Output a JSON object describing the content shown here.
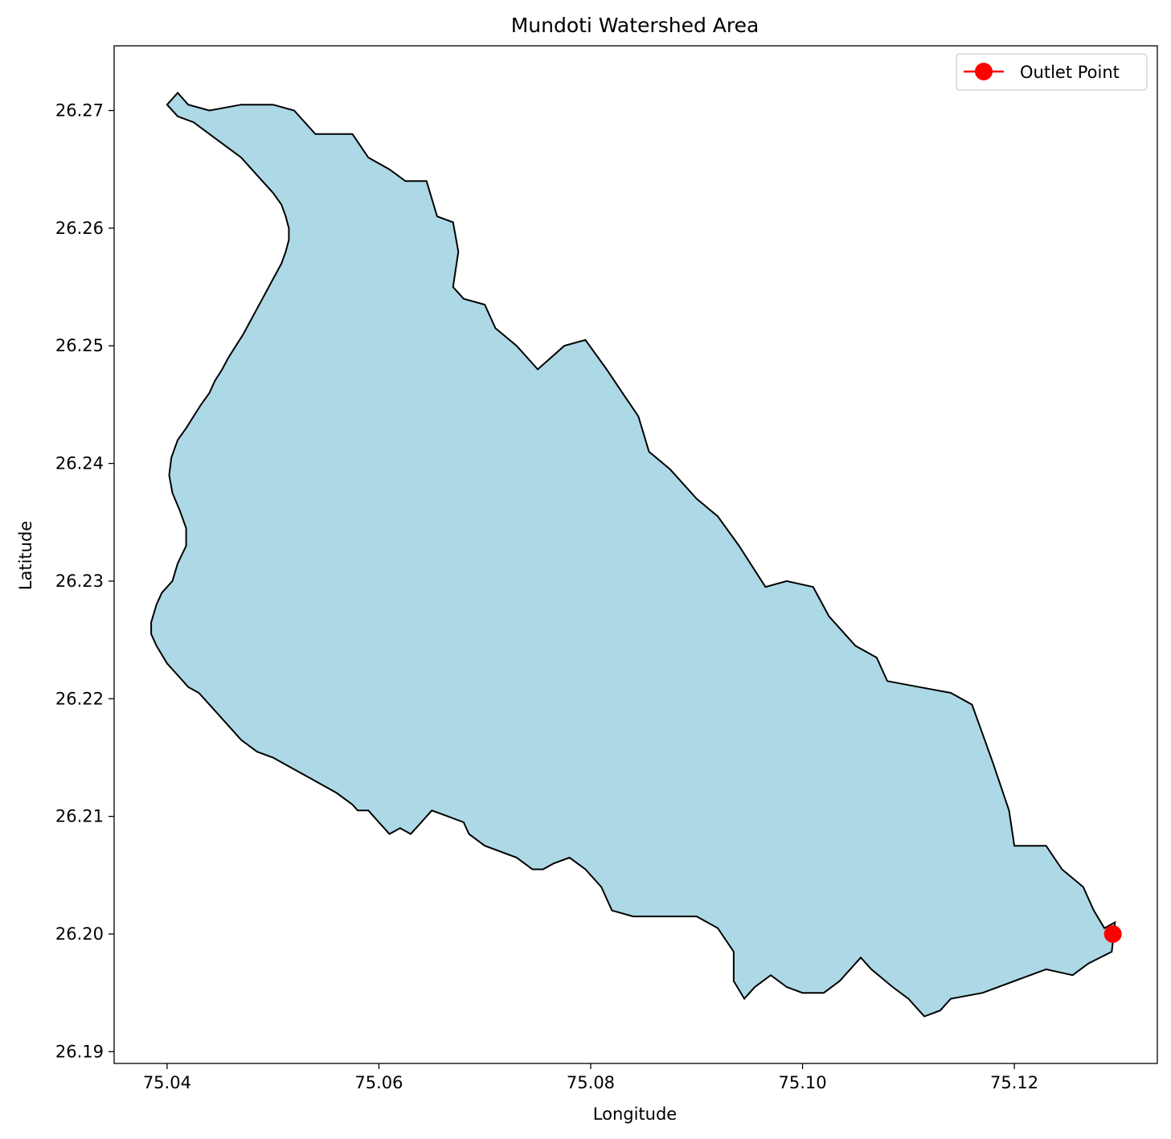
{
  "chart_data": {
    "type": "area",
    "title": "Mundoti Watershed Area",
    "xlabel": "Longitude",
    "ylabel": "Latitude",
    "xlim": [
      75.035,
      75.1335
    ],
    "ylim": [
      26.189,
      26.2755
    ],
    "x_ticks": [
      "75.04",
      "75.06",
      "75.08",
      "75.10",
      "75.12"
    ],
    "y_ticks": [
      "26.19",
      "26.20",
      "26.21",
      "26.22",
      "26.23",
      "26.24",
      "26.25",
      "26.26",
      "26.27"
    ],
    "grid": false,
    "legend_position": "top-right",
    "series": [
      {
        "kind": "polygon",
        "fill_color": "#add8e6",
        "edge_color": "#000000",
        "points": [
          [
            75.04,
            26.2705
          ],
          [
            75.041,
            26.2715
          ],
          [
            75.042,
            26.2705
          ],
          [
            75.044,
            26.27
          ],
          [
            75.047,
            26.2705
          ],
          [
            75.05,
            26.2705
          ],
          [
            75.052,
            26.27
          ],
          [
            75.054,
            26.268
          ],
          [
            75.0575,
            26.268
          ],
          [
            75.059,
            26.266
          ],
          [
            75.061,
            26.265
          ],
          [
            75.0625,
            26.264
          ],
          [
            75.0645,
            26.264
          ],
          [
            75.0655,
            26.261
          ],
          [
            75.067,
            26.2605
          ],
          [
            75.0675,
            26.258
          ],
          [
            75.067,
            26.255
          ],
          [
            75.068,
            26.254
          ],
          [
            75.07,
            26.2535
          ],
          [
            75.071,
            26.2515
          ],
          [
            75.073,
            26.25
          ],
          [
            75.075,
            26.248
          ],
          [
            75.0775,
            26.25
          ],
          [
            75.0795,
            26.2505
          ],
          [
            75.0815,
            26.248
          ],
          [
            75.083,
            26.246
          ],
          [
            75.0845,
            26.244
          ],
          [
            75.0855,
            26.241
          ],
          [
            75.0875,
            26.2395
          ],
          [
            75.09,
            26.237
          ],
          [
            75.092,
            26.2355
          ],
          [
            75.094,
            26.233
          ],
          [
            75.0965,
            26.2295
          ],
          [
            75.0985,
            26.23
          ],
          [
            75.101,
            26.2295
          ],
          [
            75.1025,
            26.227
          ],
          [
            75.105,
            26.2245
          ],
          [
            75.107,
            26.2235
          ],
          [
            75.108,
            26.2215
          ],
          [
            75.111,
            26.221
          ],
          [
            75.114,
            26.2205
          ],
          [
            75.116,
            26.2195
          ],
          [
            75.117,
            26.217
          ],
          [
            75.118,
            26.2145
          ],
          [
            75.1195,
            26.2105
          ],
          [
            75.12,
            26.2075
          ],
          [
            75.123,
            26.2075
          ],
          [
            75.1245,
            26.2055
          ],
          [
            75.1265,
            26.204
          ],
          [
            75.1275,
            26.202
          ],
          [
            75.1285,
            26.2005
          ],
          [
            75.1295,
            26.201
          ],
          [
            75.1292,
            26.1985
          ],
          [
            75.127,
            26.1975
          ],
          [
            75.1255,
            26.1965
          ],
          [
            75.123,
            26.197
          ],
          [
            75.12,
            26.196
          ],
          [
            75.117,
            26.195
          ],
          [
            75.114,
            26.1945
          ],
          [
            75.113,
            26.1935
          ],
          [
            75.1115,
            26.193
          ],
          [
            75.11,
            26.1945
          ],
          [
            75.1085,
            26.1955
          ],
          [
            75.1065,
            26.197
          ],
          [
            75.1055,
            26.198
          ],
          [
            75.1035,
            26.196
          ],
          [
            75.102,
            26.195
          ],
          [
            75.1,
            26.195
          ],
          [
            75.0985,
            26.1955
          ],
          [
            75.097,
            26.1965
          ],
          [
            75.0955,
            26.1955
          ],
          [
            75.0945,
            26.1945
          ],
          [
            75.0935,
            26.196
          ],
          [
            75.0935,
            26.1985
          ],
          [
            75.092,
            26.2005
          ],
          [
            75.09,
            26.2015
          ],
          [
            75.087,
            26.2015
          ],
          [
            75.084,
            26.2015
          ],
          [
            75.082,
            26.202
          ],
          [
            75.081,
            26.204
          ],
          [
            75.0795,
            26.2055
          ],
          [
            75.078,
            26.2065
          ],
          [
            75.0765,
            26.206
          ],
          [
            75.0755,
            26.2055
          ],
          [
            75.0745,
            26.2055
          ],
          [
            75.073,
            26.2065
          ],
          [
            75.07,
            26.2075
          ],
          [
            75.0685,
            26.2085
          ],
          [
            75.068,
            26.2095
          ],
          [
            75.0665,
            26.21
          ],
          [
            75.065,
            26.2105
          ],
          [
            75.064,
            26.2095
          ],
          [
            75.063,
            26.2085
          ],
          [
            75.062,
            26.209
          ],
          [
            75.061,
            26.2085
          ],
          [
            75.06,
            26.2095
          ],
          [
            75.059,
            26.2105
          ],
          [
            75.058,
            26.2105
          ],
          [
            75.0575,
            26.211
          ],
          [
            75.056,
            26.212
          ],
          [
            75.054,
            26.213
          ],
          [
            75.052,
            26.214
          ],
          [
            75.05,
            26.215
          ],
          [
            75.0485,
            26.2155
          ],
          [
            75.047,
            26.2165
          ],
          [
            75.046,
            26.2175
          ],
          [
            75.045,
            26.2185
          ],
          [
            75.044,
            26.2195
          ],
          [
            75.043,
            26.2205
          ],
          [
            75.042,
            26.221
          ],
          [
            75.041,
            26.222
          ],
          [
            75.04,
            26.223
          ],
          [
            75.039,
            26.2245
          ],
          [
            75.0385,
            26.2255
          ],
          [
            75.0385,
            26.2265
          ],
          [
            75.039,
            26.228
          ],
          [
            75.0395,
            26.229
          ],
          [
            75.0405,
            26.23
          ],
          [
            75.041,
            26.2315
          ],
          [
            75.0418,
            26.233
          ],
          [
            75.0418,
            26.2345
          ],
          [
            75.0412,
            26.236
          ],
          [
            75.0405,
            26.2375
          ],
          [
            75.0402,
            26.239
          ],
          [
            75.0404,
            26.2405
          ],
          [
            75.041,
            26.242
          ],
          [
            75.0418,
            26.243
          ],
          [
            75.0425,
            26.244
          ],
          [
            75.0432,
            26.245
          ],
          [
            75.044,
            26.246
          ],
          [
            75.0445,
            26.247
          ],
          [
            75.0452,
            26.248
          ],
          [
            75.0458,
            26.249
          ],
          [
            75.0465,
            26.25
          ],
          [
            75.0472,
            26.251
          ],
          [
            75.0478,
            26.252
          ],
          [
            75.0484,
            26.253
          ],
          [
            75.049,
            26.254
          ],
          [
            75.0496,
            26.255
          ],
          [
            75.0502,
            26.256
          ],
          [
            75.0508,
            26.257
          ],
          [
            75.0512,
            26.258
          ],
          [
            75.0515,
            26.259
          ],
          [
            75.0515,
            26.26
          ],
          [
            75.0512,
            26.261
          ],
          [
            75.0508,
            26.262
          ],
          [
            75.05,
            26.263
          ],
          [
            75.049,
            26.264
          ],
          [
            75.048,
            26.265
          ],
          [
            75.047,
            26.266
          ],
          [
            75.0455,
            26.267
          ],
          [
            75.044,
            26.268
          ],
          [
            75.0425,
            26.269
          ],
          [
            75.041,
            26.2695
          ]
        ]
      },
      {
        "kind": "marker",
        "name": "Outlet Point",
        "color": "#ff0000",
        "x": 75.1293,
        "y": 26.2
      }
    ]
  }
}
